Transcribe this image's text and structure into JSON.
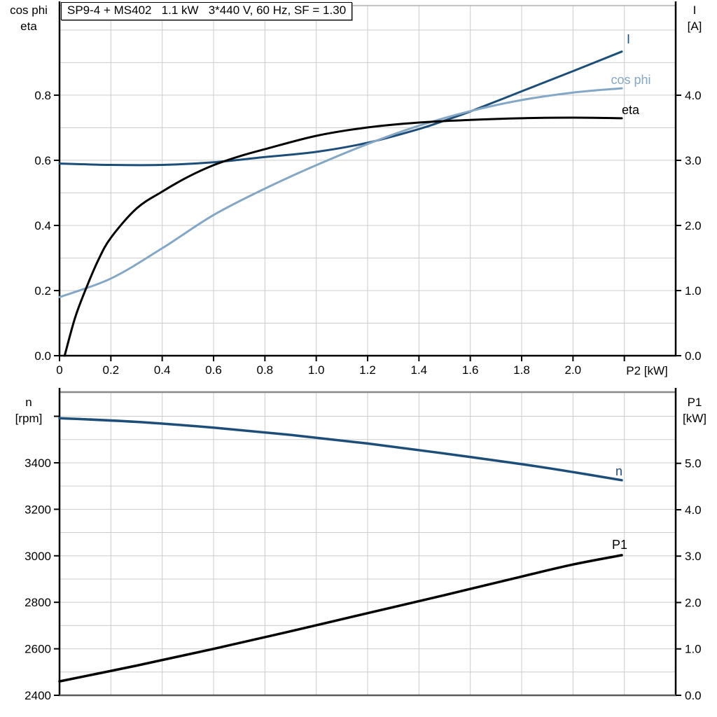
{
  "title": "SP9-4 + MS402   1.1 kW   3*440 V, 60 Hz, SF = 1.30",
  "colors": {
    "dark_blue": "#1d4e79",
    "light_blue": "#84a7c6",
    "black": "#000000",
    "gridline": "#cccccc",
    "frame_light": "#b0b0b0",
    "frame_mid": "#8a8a8a",
    "axis_gray": "#5a5a5a"
  },
  "labels": {
    "top_left_line1": "cos phi",
    "top_left_line2": "eta",
    "top_right_line1": "I",
    "top_right_line2": "[A]",
    "x_axis": "P2 [kW]",
    "bottom_left_line1": "n",
    "bottom_left_line2": "[rpm]",
    "bottom_right_line1": "P1",
    "bottom_right_line2": "[kW]",
    "curve_I": "I",
    "curve_cosphi": "cos phi",
    "curve_eta": "eta",
    "curve_n": "n",
    "curve_P1": "P1"
  },
  "chart_data": [
    {
      "type": "line",
      "title": "SP9-4 + MS402   1.1 kW   3*440 V, 60 Hz, SF = 1.30",
      "x_axis": {
        "label": "P2 [kW]",
        "range": [
          0,
          2.4
        ],
        "tick_values": [
          0,
          0.2,
          0.4,
          0.6,
          0.8,
          1.0,
          1.2,
          1.4,
          1.6,
          1.8,
          2.0,
          2.2
        ],
        "tick_labels": [
          "0",
          "0.2",
          "0.4",
          "0.6",
          "0.8",
          "1.0",
          "1.2",
          "1.4",
          "1.6",
          "1.8",
          "2.0",
          ""
        ],
        "gridline_step": 0.2
      },
      "y_left": {
        "label": "cos phi / eta",
        "range": [
          0,
          1.075
        ],
        "tick_values": [
          0,
          0.2,
          0.4,
          0.6,
          0.8
        ],
        "tick_labels": [
          "0.0",
          "0.2",
          "0.4",
          "0.6",
          "0.8"
        ],
        "gridline_step": 0.1
      },
      "y_right": {
        "label": "I [A]",
        "range": [
          0,
          5.376
        ],
        "tick_values": [
          0,
          1,
          2,
          3,
          4
        ],
        "tick_labels": [
          "0.0",
          "1.0",
          "2.0",
          "3.0",
          "4.0"
        ]
      },
      "legend_position": "inline-right",
      "grid": true,
      "series": [
        {
          "name": "I",
          "axis": "right",
          "color": "#1d4e79",
          "points": [
            [
              0,
              2.95
            ],
            [
              0.2,
              2.93
            ],
            [
              0.4,
              2.93
            ],
            [
              0.6,
              2.97
            ],
            [
              0.8,
              3.05
            ],
            [
              1.0,
              3.13
            ],
            [
              1.2,
              3.27
            ],
            [
              1.4,
              3.48
            ],
            [
              1.5,
              3.61
            ],
            [
              1.6,
              3.75
            ],
            [
              1.8,
              4.06
            ],
            [
              2.0,
              4.37
            ],
            [
              2.19,
              4.67
            ]
          ]
        },
        {
          "name": "cos phi",
          "axis": "left",
          "color": "#84a7c6",
          "points": [
            [
              0,
              0.18
            ],
            [
              0.2,
              0.237
            ],
            [
              0.4,
              0.33
            ],
            [
              0.6,
              0.432
            ],
            [
              0.8,
              0.513
            ],
            [
              1.0,
              0.585
            ],
            [
              1.2,
              0.65
            ],
            [
              1.4,
              0.706
            ],
            [
              1.6,
              0.751
            ],
            [
              1.8,
              0.785
            ],
            [
              2.0,
              0.808
            ],
            [
              2.19,
              0.821
            ]
          ]
        },
        {
          "name": "eta",
          "axis": "left",
          "color": "#000000",
          "points": [
            [
              0.02,
              0
            ],
            [
              0.06,
              0.115
            ],
            [
              0.1,
              0.2
            ],
            [
              0.15,
              0.292
            ],
            [
              0.2,
              0.362
            ],
            [
              0.3,
              0.452
            ],
            [
              0.4,
              0.504
            ],
            [
              0.5,
              0.549
            ],
            [
              0.6,
              0.585
            ],
            [
              0.7,
              0.612
            ],
            [
              0.8,
              0.634
            ],
            [
              1.0,
              0.675
            ],
            [
              1.2,
              0.701
            ],
            [
              1.4,
              0.716
            ],
            [
              1.6,
              0.724
            ],
            [
              1.8,
              0.729
            ],
            [
              2.0,
              0.731
            ],
            [
              2.19,
              0.729
            ]
          ]
        }
      ]
    },
    {
      "type": "line",
      "title": "",
      "x_axis": {
        "label": "",
        "range": [
          0,
          2.4
        ],
        "tick_values": [],
        "tick_labels": [],
        "gridline_step": 0.2
      },
      "y_left": {
        "label": "n [rpm]",
        "range": [
          2400,
          3704
        ],
        "tick_values": [
          2400,
          2600,
          2800,
          3000,
          3200,
          3400,
          3600
        ],
        "tick_labels": [
          "2400",
          "2600",
          "2800",
          "3000",
          "3200",
          "3400",
          ""
        ],
        "gridline_step": 100
      },
      "y_right": {
        "label": "P1 [kW]",
        "range": [
          0,
          6.535
        ],
        "tick_values": [
          0,
          1,
          2,
          3,
          4,
          5
        ],
        "tick_labels": [
          "0.0",
          "1.0",
          "2.0",
          "3.0",
          "4.0",
          "5.0"
        ]
      },
      "grid": true,
      "series": [
        {
          "name": "n",
          "axis": "left",
          "color": "#1d4e79",
          "points": [
            [
              0,
              3592
            ],
            [
              0.3,
              3576
            ],
            [
              0.6,
              3551
            ],
            [
              0.9,
              3520
            ],
            [
              1.2,
              3483
            ],
            [
              1.5,
              3440
            ],
            [
              1.8,
              3394
            ],
            [
              2.0,
              3360
            ],
            [
              2.19,
              3325
            ]
          ]
        },
        {
          "name": "P1",
          "axis": "right",
          "color": "#000000",
          "points": [
            [
              0,
              0.3
            ],
            [
              0.3,
              0.64
            ],
            [
              0.6,
              1.0
            ],
            [
              0.9,
              1.38
            ],
            [
              1.2,
              1.77
            ],
            [
              1.5,
              2.16
            ],
            [
              1.8,
              2.56
            ],
            [
              2.0,
              2.82
            ],
            [
              2.19,
              3.02
            ]
          ]
        }
      ]
    }
  ]
}
